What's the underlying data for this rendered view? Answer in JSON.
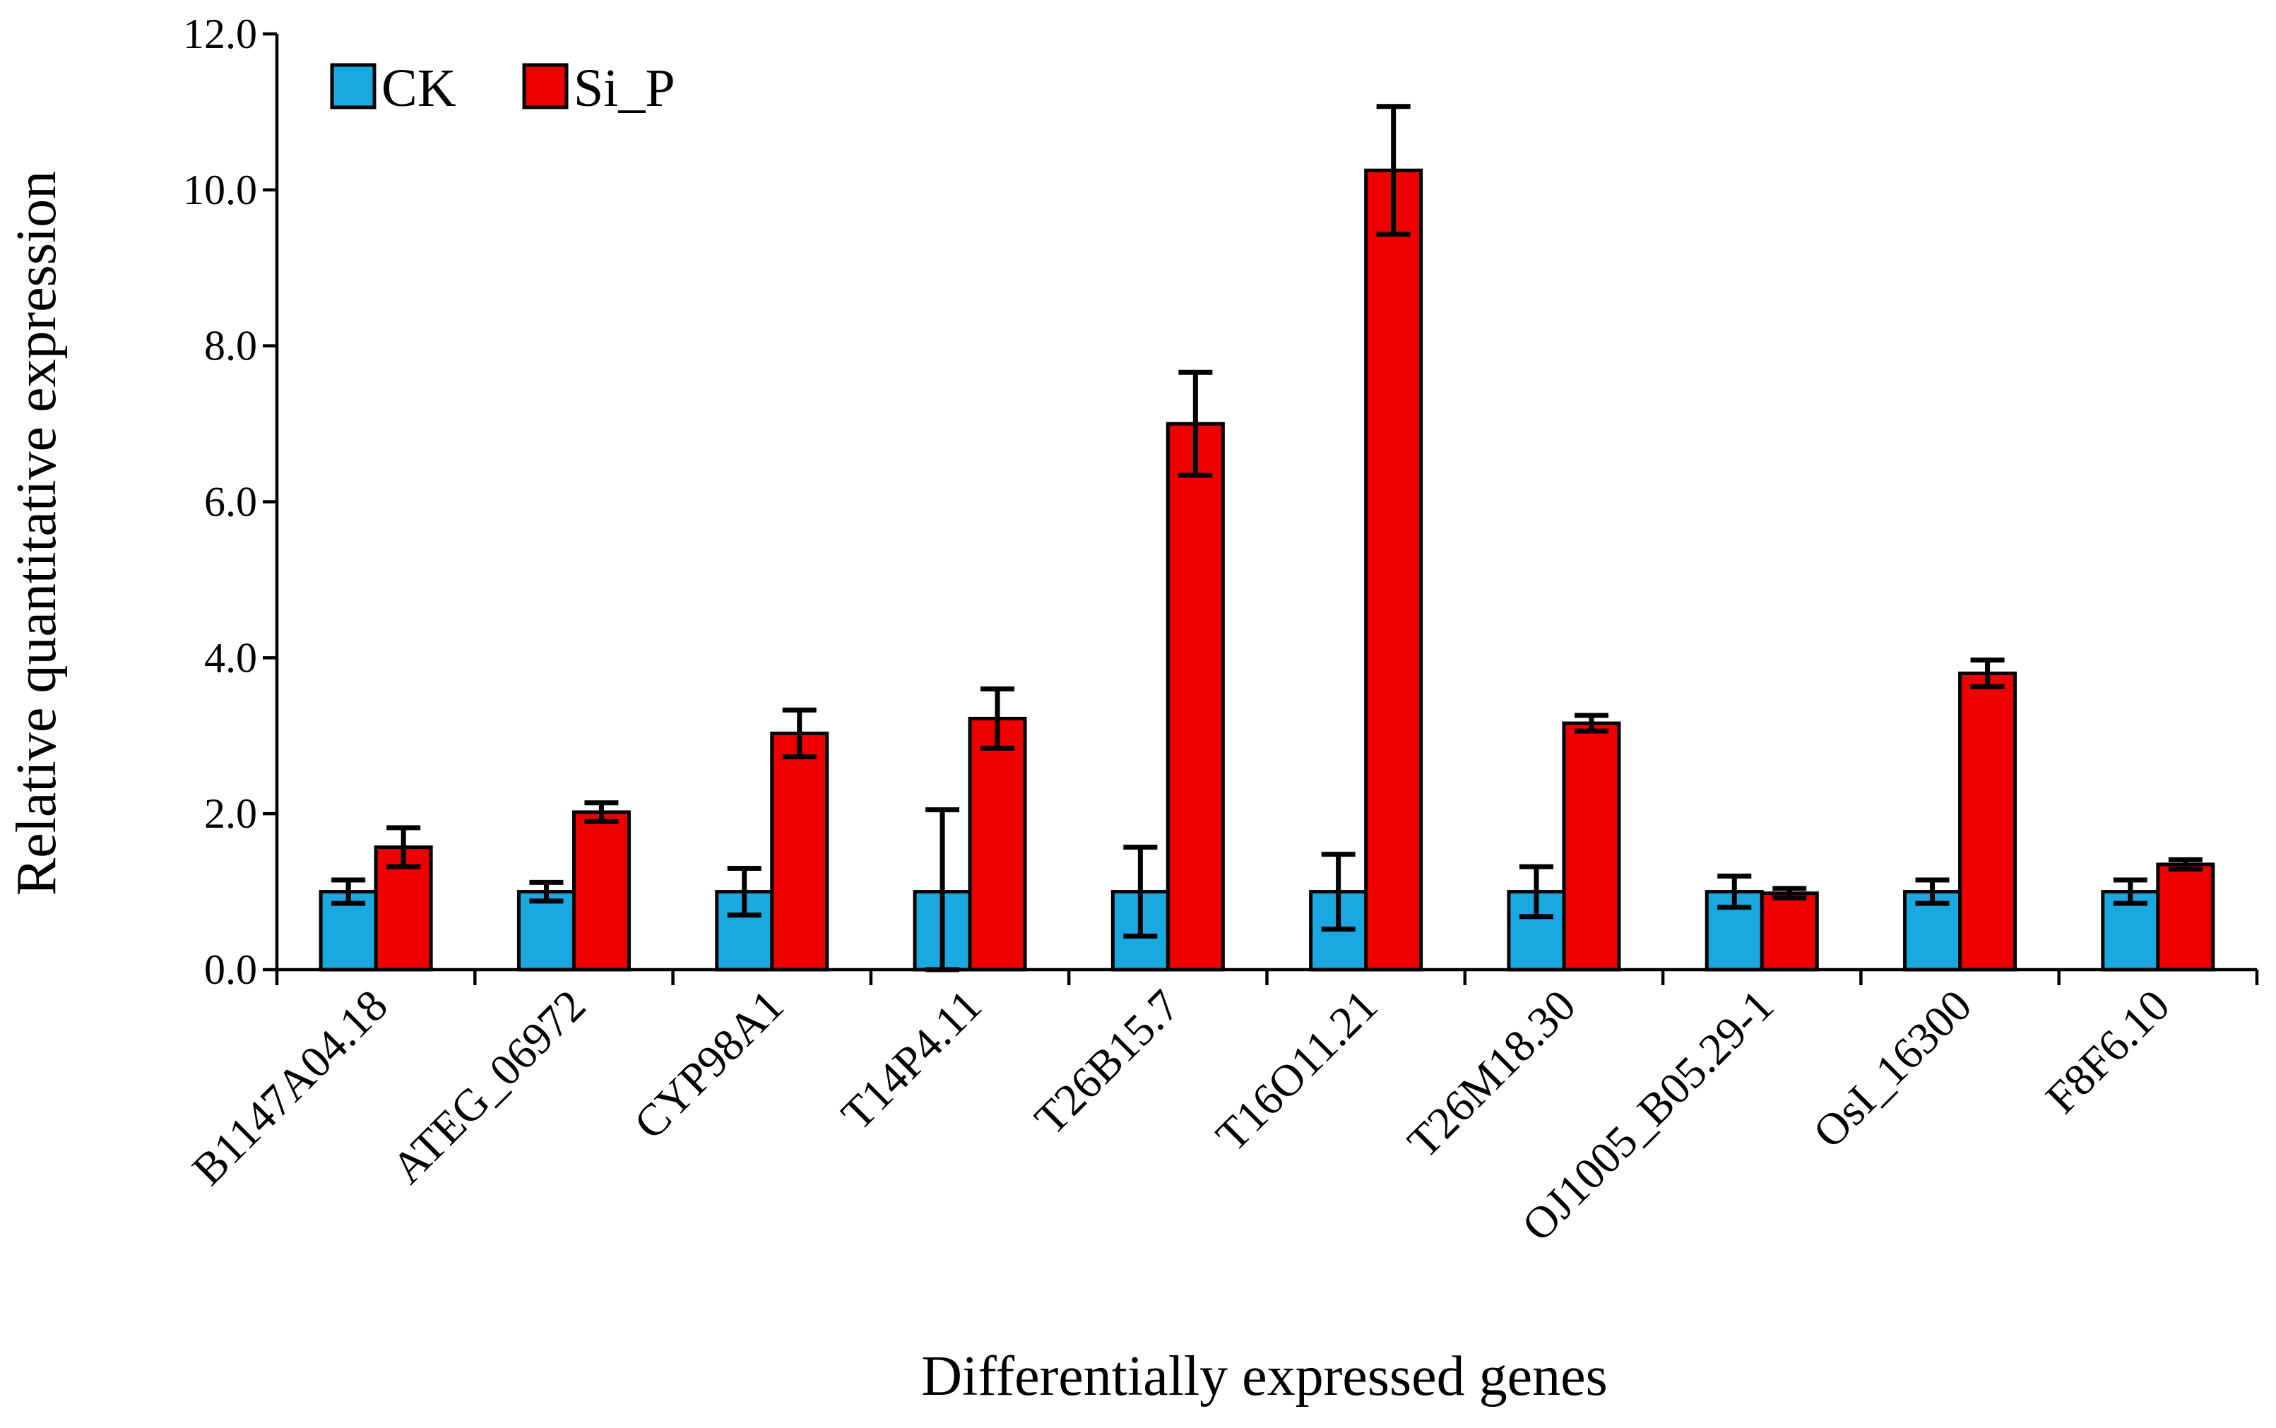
{
  "chart_data": {
    "type": "bar",
    "title": "",
    "xlabel": "Differentially expressed genes",
    "ylabel": "Relative quantitative expression",
    "ylim": [
      0,
      12
    ],
    "yticks": [
      0,
      2,
      4,
      6,
      8,
      10,
      12
    ],
    "ytick_labels": [
      "0.0",
      "2.0",
      "4.0",
      "6.0",
      "8.0",
      "10.0",
      "12.0"
    ],
    "grid": false,
    "legend_position": "top-left",
    "categories": [
      "B1147A04.18",
      "ATEG_06972",
      "CYP98A1",
      "T14P4.11",
      "T26B15.7",
      "T16O11.21",
      "T26M18.30",
      "OJ1005_B05.29-1",
      "OsI_16300",
      "F8F6.10"
    ],
    "series": [
      {
        "name": "CK",
        "color": "#1aa8e0",
        "values": [
          1.0,
          1.0,
          1.0,
          1.0,
          1.0,
          1.0,
          1.0,
          1.0,
          1.0,
          1.0
        ],
        "errors": [
          0.15,
          0.12,
          0.3,
          1.05,
          0.57,
          0.48,
          0.32,
          0.2,
          0.15,
          0.15
        ]
      },
      {
        "name": "Si_P",
        "color": "#ee0000",
        "values": [
          1.57,
          2.02,
          3.03,
          3.22,
          7.0,
          10.25,
          3.16,
          0.98,
          3.8,
          1.35
        ],
        "errors": [
          0.25,
          0.12,
          0.3,
          0.38,
          0.66,
          0.82,
          0.1,
          0.06,
          0.17,
          0.06
        ]
      }
    ]
  }
}
